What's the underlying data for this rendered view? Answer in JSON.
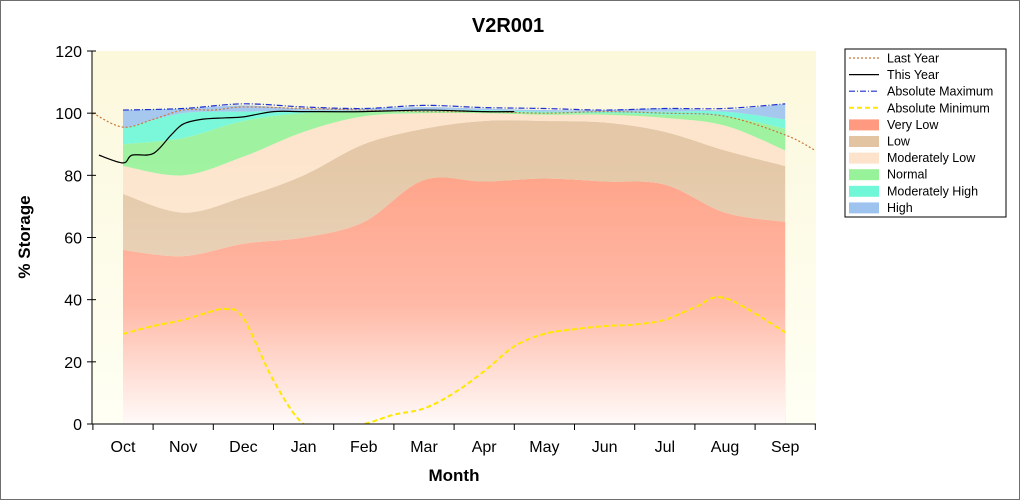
{
  "chart_data": {
    "type": "area",
    "title": "V2R001",
    "xlabel": "Month",
    "ylabel": "% Storage",
    "ylim": [
      0,
      120
    ],
    "yticks": [
      0,
      20,
      40,
      60,
      80,
      100,
      120
    ],
    "categories": [
      "Oct",
      "Nov",
      "Dec",
      "Jan",
      "Feb",
      "Mar",
      "Apr",
      "May",
      "Jun",
      "Jul",
      "Aug",
      "Sep"
    ],
    "legend_position": "right",
    "bands": [
      {
        "name": "Very Low",
        "color": "#ff9a80",
        "lower": [
          0,
          0,
          0,
          0,
          0,
          0,
          0,
          0,
          0,
          0,
          0,
          0
        ],
        "upper": [
          56,
          54,
          58,
          60,
          65,
          78.5,
          78,
          79,
          78,
          77,
          68,
          65
        ]
      },
      {
        "name": "Low",
        "color": "#e2c3a2",
        "lower": [
          56,
          54,
          58,
          60,
          65,
          78.5,
          78,
          79,
          78,
          77,
          68,
          65
        ],
        "upper": [
          74,
          68,
          73,
          80,
          90,
          95,
          97.5,
          97.5,
          97,
          94,
          88,
          83
        ]
      },
      {
        "name": "Moderately Low",
        "color": "#fde3cb",
        "lower": [
          74,
          68,
          73,
          80,
          90,
          95,
          97.5,
          97.5,
          97,
          94,
          88,
          83
        ],
        "upper": [
          83,
          80,
          86,
          94,
          99,
          100,
          100,
          99.5,
          99.5,
          98.5,
          96,
          88
        ]
      },
      {
        "name": "Normal",
        "color": "#97f29a",
        "lower": [
          83,
          80,
          86,
          94,
          99,
          100,
          100,
          99.5,
          99.5,
          98.5,
          96,
          88
        ],
        "upper": [
          90,
          92,
          97.5,
          100,
          100.5,
          100.5,
          100.5,
          100,
          100,
          99.5,
          99,
          95
        ]
      },
      {
        "name": "Moderately High",
        "color": "#6ff7d8",
        "lower": [
          90,
          92,
          97.5,
          100,
          100.5,
          100.5,
          100.5,
          100,
          100,
          99.5,
          99,
          95
        ],
        "upper": [
          95,
          100,
          100.5,
          100.8,
          100.8,
          101,
          101,
          100.5,
          100.5,
          100.5,
          100.5,
          98
        ]
      },
      {
        "name": "High",
        "color": "#9fc3ef",
        "lower": [
          95,
          100,
          100.5,
          100.8,
          100.8,
          101,
          101,
          100.5,
          100.5,
          100.5,
          100.5,
          98
        ],
        "upper": [
          101,
          101.5,
          102.5,
          101.5,
          101.5,
          102,
          101.5,
          101,
          101,
          101.5,
          101,
          103
        ]
      }
    ],
    "series": [
      {
        "name": "Last Year",
        "style": "dotted",
        "color": "#c9783a",
        "x": [
          -0.5,
          0,
          0.5,
          1,
          1.5,
          2,
          3,
          4,
          5,
          6,
          7,
          8,
          9,
          10,
          11,
          11.5
        ],
        "y": [
          100,
          95.5,
          98,
          101,
          101,
          102,
          101.5,
          101,
          100.5,
          100.5,
          100,
          100.5,
          100,
          99,
          93,
          88
        ]
      },
      {
        "name": "This Year",
        "style": "solid",
        "color": "#000000",
        "x": [
          -0.4,
          0,
          0.15,
          0.5,
          0.8,
          1,
          1.3,
          1.7,
          2,
          2.5,
          3,
          4,
          5,
          6,
          6.5
        ],
        "y": [
          86.5,
          84,
          86.5,
          87,
          93,
          96.5,
          98,
          98.5,
          98.8,
          100.5,
          100.5,
          100.5,
          101,
          100.5,
          100.5
        ]
      },
      {
        "name": "Absolute Maximum",
        "style": "dashdot",
        "color": "#1e2fd0",
        "x": [
          0,
          1,
          2,
          3,
          4,
          5,
          6,
          7,
          8,
          9,
          10,
          11
        ],
        "y": [
          101,
          101.5,
          103,
          102,
          101.5,
          102.5,
          101.8,
          101.5,
          101,
          101.5,
          101.5,
          103
        ]
      },
      {
        "name": "Absolute Minimum",
        "style": "dashed",
        "color": "#ffe800",
        "x": [
          0,
          0.5,
          1,
          1.35,
          1.7,
          2,
          2.5,
          3,
          3.5,
          4,
          4.5,
          5,
          5.5,
          6,
          6.5,
          7,
          7.5,
          8,
          8.5,
          9,
          9.5,
          10,
          11
        ],
        "y": [
          29,
          31.5,
          33.5,
          35.5,
          37,
          34,
          14,
          0,
          -1,
          0,
          3,
          5,
          10,
          17,
          25,
          29,
          30.5,
          31.5,
          32,
          33.5,
          37.5,
          40.5,
          29.5
        ]
      }
    ]
  },
  "legend": {
    "items": [
      "Last Year",
      "This Year",
      "Absolute Maximum",
      "Absolute Minimum",
      "Very Low",
      "Low",
      "Moderately Low",
      "Normal",
      "Moderately High",
      "High"
    ]
  }
}
